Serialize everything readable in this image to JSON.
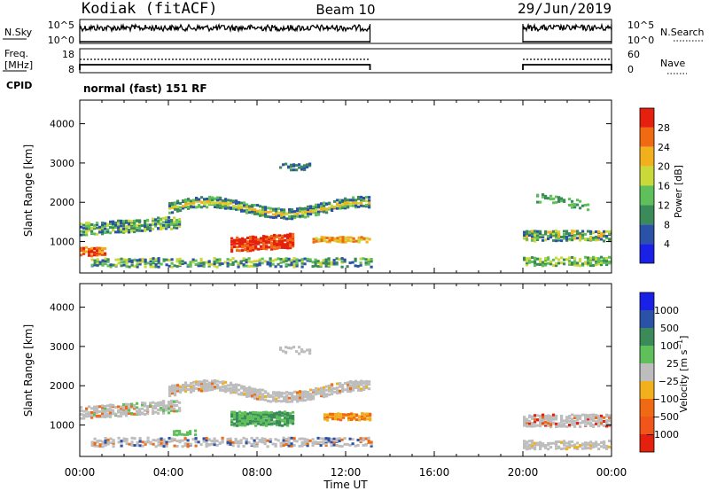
{
  "header": {
    "title_left": "Kodiak (fitACF)",
    "title_center": "Beam 10",
    "title_right": "29/Jun/2019"
  },
  "sky_panel": {
    "left_label": "N.Sky",
    "right_label": "N.Search",
    "left_ticks": [
      "10^5",
      "10^0"
    ],
    "right_ticks": [
      "10^5",
      "10^0"
    ]
  },
  "freq_panel": {
    "left_label_line1": "Freq.",
    "left_label_line2": "[MHz]",
    "right_label": "Nave",
    "left_ticks": [
      "18",
      "8"
    ],
    "right_ticks": [
      "60",
      "0"
    ]
  },
  "cpid": {
    "label": "CPID",
    "value": "normal (fast) 151 RF"
  },
  "x_axis": {
    "label": "Time UT",
    "ticks": [
      "00:00",
      "04:00",
      "08:00",
      "12:00",
      "16:00",
      "20:00",
      "00:00"
    ],
    "hours": [
      0,
      4,
      8,
      12,
      16,
      20,
      24
    ]
  },
  "colors": {
    "power": [
      "#1a20e6",
      "#2c52a8",
      "#3a8a5a",
      "#5fbf5a",
      "#c9d93a",
      "#f2b01c",
      "#f06a14",
      "#e6200e"
    ],
    "velocity": [
      "#1a20e6",
      "#2c52a8",
      "#3a8a5a",
      "#5fbf5a",
      "#bdbdbd",
      "#f2b01c",
      "#f06a14",
      "#f0561a",
      "#e6200e"
    ]
  },
  "chart_data": [
    {
      "type": "heatmap",
      "title": "",
      "xlabel": "Time UT",
      "ylabel": "Slant Range [km]",
      "yticks": [
        "1000",
        "2000",
        "3000",
        "4000"
      ],
      "xlim": [
        0,
        24
      ],
      "ylim": [
        200,
        4600
      ],
      "colorbar_label": "Power [dB]",
      "colorbar_ticks": [
        "4",
        "8",
        "12",
        "16",
        "20",
        "24",
        "28"
      ],
      "data_gaps_hours": [
        [
          13.1,
          20.0
        ]
      ],
      "features": [
        {
          "range_km": 2000,
          "hours": [
            4.5,
            13.1
          ],
          "level": "green-yellow"
        },
        {
          "range_km": 1300,
          "hours": [
            0,
            4.5
          ],
          "level": "green"
        },
        {
          "range_km": 900,
          "hours": [
            7.0,
            9.5
          ],
          "level": "red"
        },
        {
          "range_km": 1100,
          "hours": [
            20.0,
            24.0
          ],
          "level": "green-orange"
        }
      ]
    },
    {
      "type": "heatmap",
      "title": "",
      "xlabel": "Time UT",
      "ylabel": "Slant Range [km]",
      "yticks": [
        "1000",
        "2000",
        "3000",
        "4000"
      ],
      "xlim": [
        0,
        24
      ],
      "ylim": [
        200,
        4600
      ],
      "colorbar_label": "Velocity [m s^-1]",
      "colorbar_ticks": [
        "1000",
        "500",
        "100",
        "25",
        "−25",
        "−100",
        "−500",
        "−1000"
      ],
      "data_gaps_hours": [
        [
          13.1,
          20.0
        ]
      ],
      "features": [
        {
          "range_km": 2000,
          "hours": [
            4.5,
            13.1
          ],
          "level": "grey"
        },
        {
          "range_km": 1200,
          "hours": [
            7.0,
            9.5
          ],
          "level": "green"
        },
        {
          "range_km": 1200,
          "hours": [
            11.0,
            13.1
          ],
          "level": "orange"
        },
        {
          "range_km": 1100,
          "hours": [
            20.0,
            24.0
          ],
          "level": "grey"
        }
      ]
    }
  ]
}
